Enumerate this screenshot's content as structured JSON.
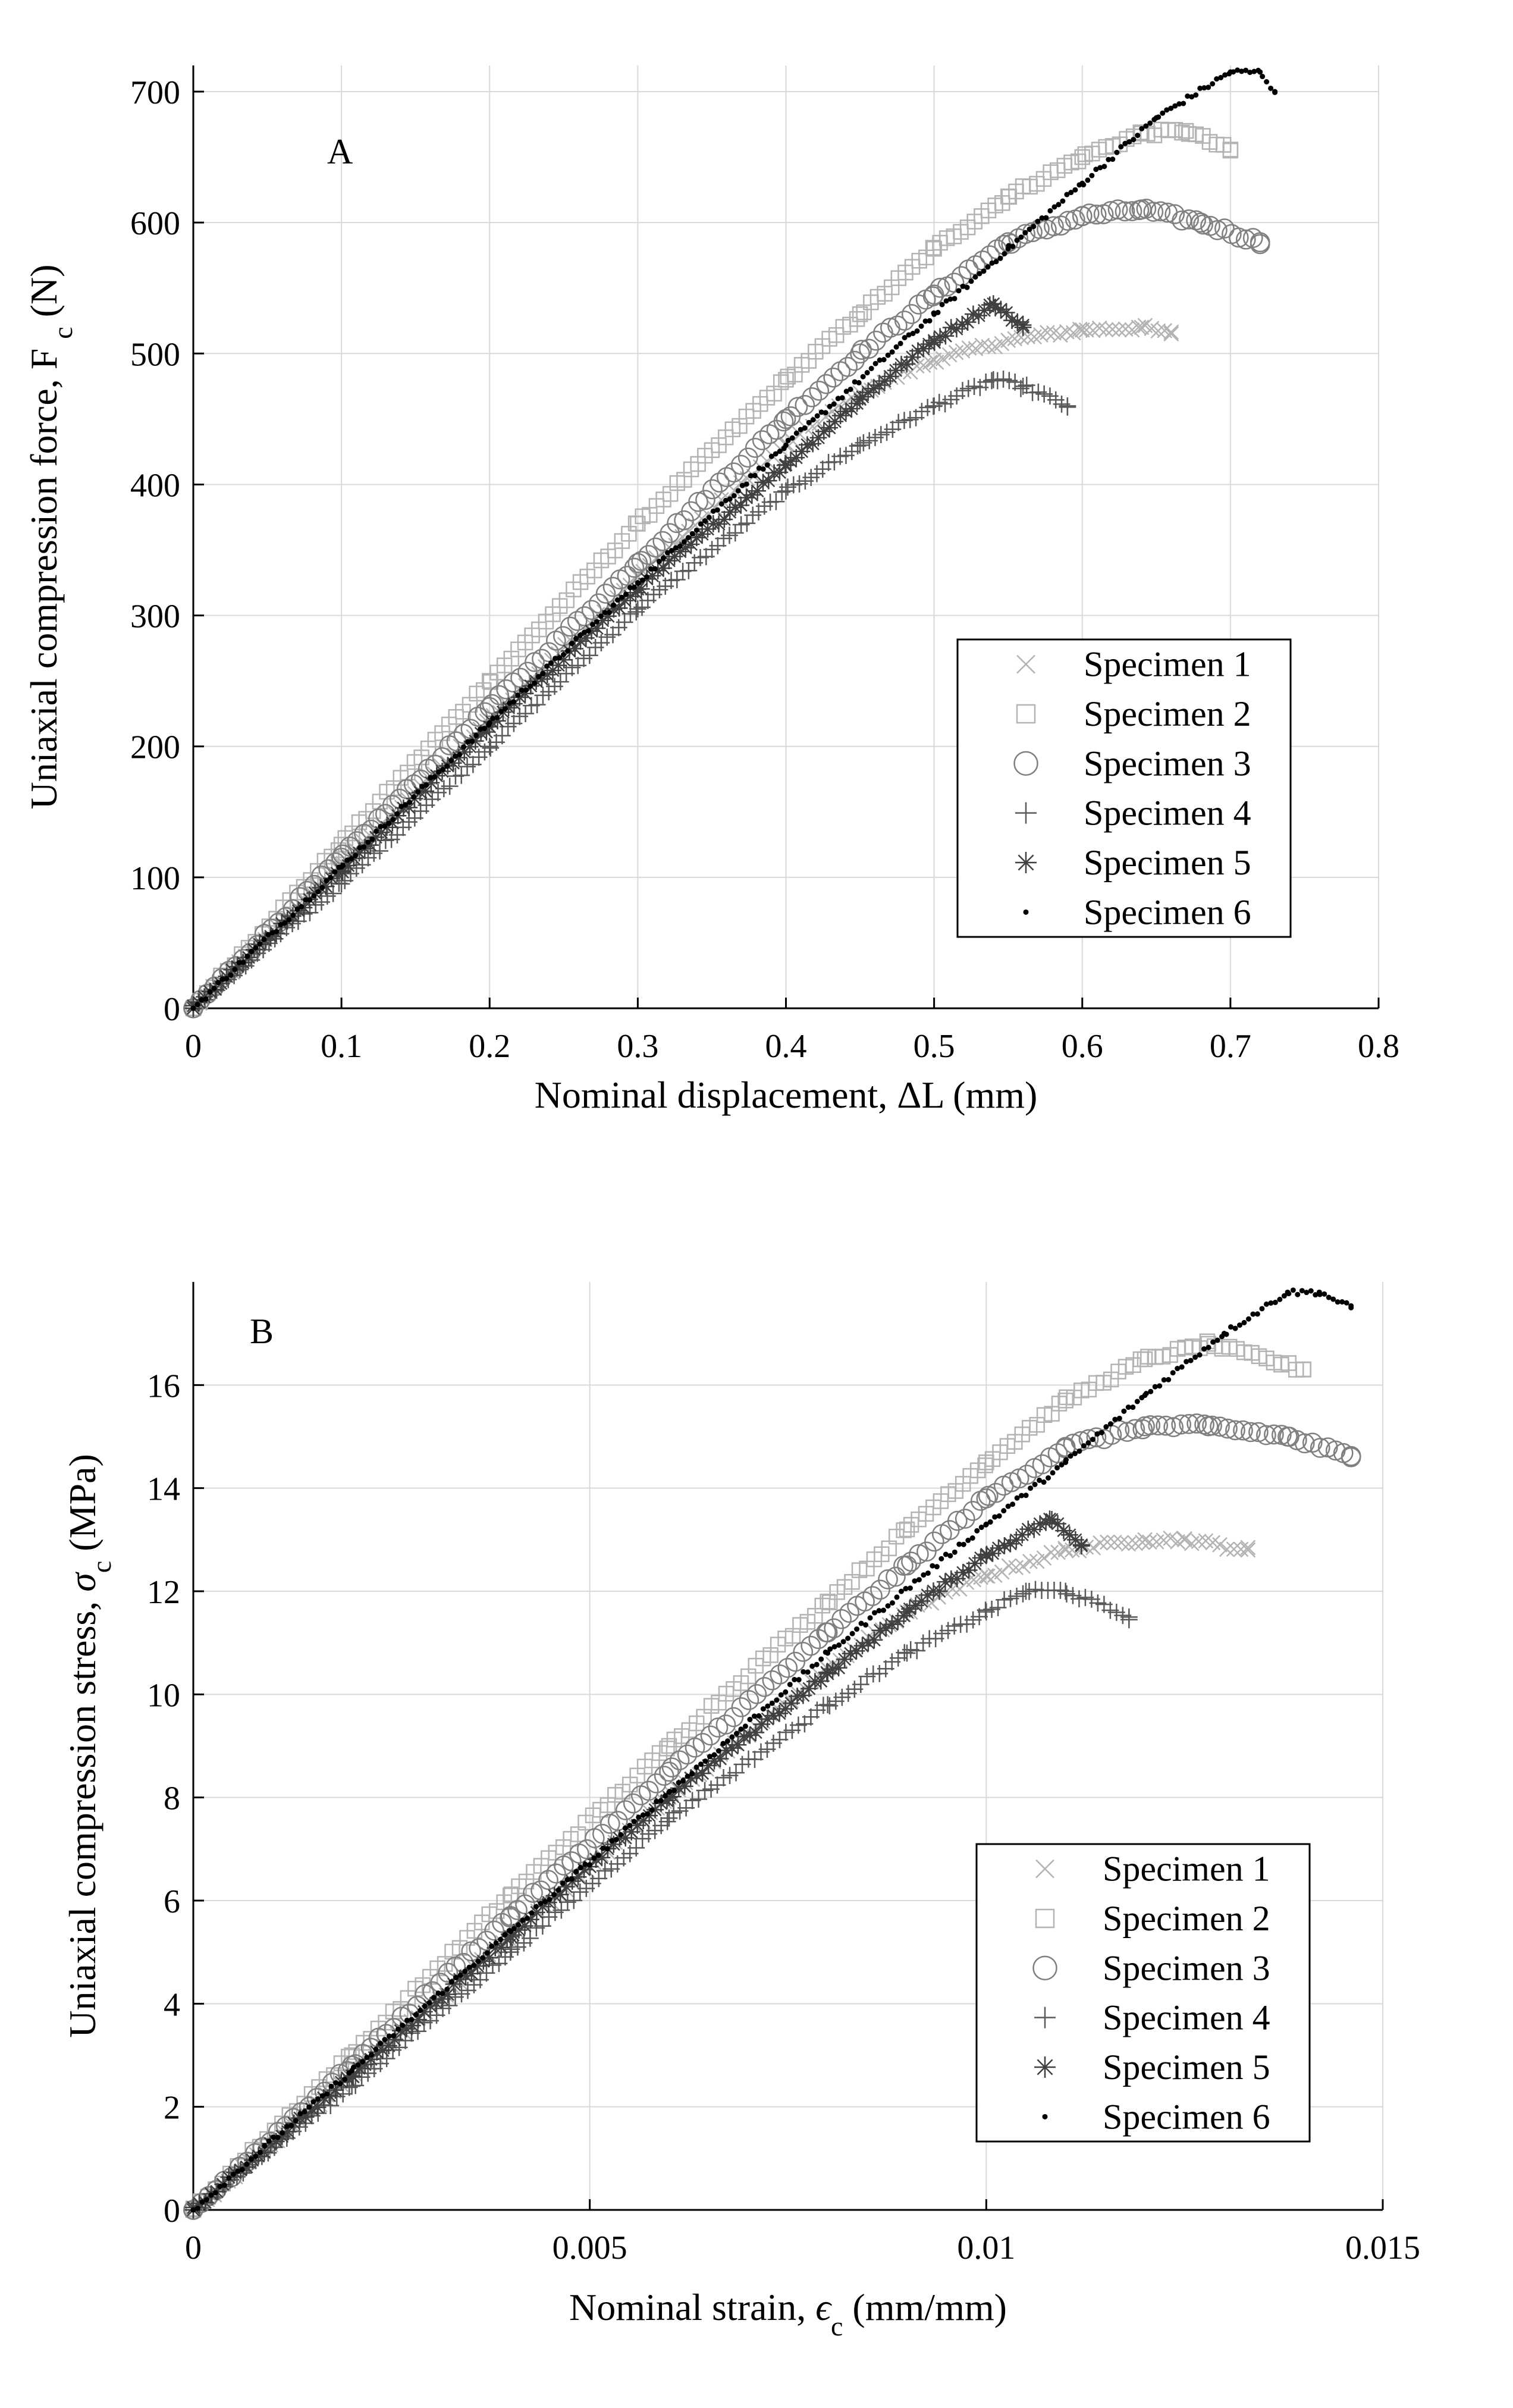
{
  "chart_data": [
    {
      "type": "scatter",
      "panel_label": "A",
      "xlabel": "Nominal displacement,  ΔL (mm)",
      "ylabel": "Uniaxial compression force, F",
      "ylabel_subscript": "c",
      "ylabel_suffix": " (N)",
      "xlim": [
        0,
        0.8
      ],
      "ylim": [
        0,
        720
      ],
      "xticks": [
        0,
        0.1,
        0.2,
        0.3,
        0.4,
        0.5,
        0.6,
        0.7,
        0.8
      ],
      "xtick_labels": [
        "0",
        "0.1",
        "0.2",
        "0.3",
        "0.4",
        "0.5",
        "0.6",
        "0.7",
        "0.8"
      ],
      "yticks": [
        0,
        100,
        200,
        300,
        400,
        500,
        600,
        700
      ],
      "ytick_labels": [
        "0",
        "100",
        "200",
        "300",
        "400",
        "500",
        "600",
        "700"
      ],
      "grid": true,
      "legend_position": "lower-right",
      "series": [
        {
          "name": "Specimen 1",
          "marker": "x",
          "color": "#b3b3b3",
          "points": [
            [
              0,
              0
            ],
            [
              0.1,
              110
            ],
            [
              0.2,
              220
            ],
            [
              0.3,
              330
            ],
            [
              0.4,
              430
            ],
            [
              0.45,
              470
            ],
            [
              0.5,
              495
            ],
            [
              0.55,
              510
            ],
            [
              0.6,
              518
            ],
            [
              0.64,
              520
            ],
            [
              0.66,
              515
            ]
          ]
        },
        {
          "name": "Specimen 2",
          "marker": "square",
          "color": "#b3b3b3",
          "points": [
            [
              0,
              0
            ],
            [
              0.1,
              125
            ],
            [
              0.2,
              250
            ],
            [
              0.3,
              370
            ],
            [
              0.4,
              480
            ],
            [
              0.45,
              530
            ],
            [
              0.5,
              580
            ],
            [
              0.55,
              620
            ],
            [
              0.6,
              650
            ],
            [
              0.64,
              668
            ],
            [
              0.67,
              670
            ],
            [
              0.7,
              655
            ]
          ]
        },
        {
          "name": "Specimen 3",
          "marker": "circle",
          "color": "#7f7f7f",
          "points": [
            [
              0,
              0
            ],
            [
              0.1,
              115
            ],
            [
              0.2,
              230
            ],
            [
              0.3,
              340
            ],
            [
              0.4,
              450
            ],
            [
              0.45,
              500
            ],
            [
              0.5,
              545
            ],
            [
              0.55,
              585
            ],
            [
              0.6,
              605
            ],
            [
              0.64,
              610
            ],
            [
              0.68,
              600
            ],
            [
              0.72,
              585
            ]
          ]
        },
        {
          "name": "Specimen 4",
          "marker": "plus",
          "color": "#595959",
          "points": [
            [
              0,
              0
            ],
            [
              0.1,
              95
            ],
            [
              0.2,
              200
            ],
            [
              0.3,
              305
            ],
            [
              0.4,
              395
            ],
            [
              0.45,
              430
            ],
            [
              0.5,
              460
            ],
            [
              0.54,
              480
            ],
            [
              0.56,
              475
            ],
            [
              0.59,
              460
            ]
          ]
        },
        {
          "name": "Specimen 5",
          "marker": "asterisk",
          "color": "#404040",
          "points": [
            [
              0,
              0
            ],
            [
              0.1,
              105
            ],
            [
              0.2,
              215
            ],
            [
              0.3,
              320
            ],
            [
              0.4,
              415
            ],
            [
              0.45,
              465
            ],
            [
              0.5,
              510
            ],
            [
              0.54,
              538
            ],
            [
              0.56,
              520
            ]
          ]
        },
        {
          "name": "Specimen 6",
          "marker": "dot",
          "color": "#000000",
          "points": [
            [
              0,
              0
            ],
            [
              0.1,
              108
            ],
            [
              0.2,
              218
            ],
            [
              0.3,
              325
            ],
            [
              0.4,
              430
            ],
            [
              0.5,
              530
            ],
            [
              0.55,
              580
            ],
            [
              0.6,
              630
            ],
            [
              0.65,
              680
            ],
            [
              0.7,
              715
            ],
            [
              0.72,
              715
            ],
            [
              0.73,
              700
            ]
          ]
        }
      ]
    },
    {
      "type": "scatter",
      "panel_label": "B",
      "xlabel": "Nominal strain,",
      "xlabel_symbol": "ϵ",
      "xlabel_subscript": "c",
      "xlabel_suffix": " (mm/mm)",
      "ylabel": "Uniaxial compression stress,",
      "ylabel_symbol": "σ",
      "ylabel_subscript": "c",
      "ylabel_suffix": " (MPa)",
      "xlim": [
        0,
        0.015
      ],
      "ylim": [
        0,
        18
      ],
      "xticks": [
        0,
        0.005,
        0.01,
        0.015
      ],
      "xtick_labels": [
        "0",
        "0.005",
        "0.01",
        "0.015"
      ],
      "yticks": [
        0,
        2,
        4,
        6,
        8,
        10,
        12,
        14,
        16
      ],
      "ytick_labels": [
        "0",
        "2",
        "4",
        "6",
        "8",
        "10",
        "12",
        "14",
        "16"
      ],
      "grid": true,
      "legend_position": "lower-right",
      "series": [
        {
          "name": "Specimen 1",
          "marker": "x",
          "color": "#b3b3b3",
          "points": [
            [
              0,
              0
            ],
            [
              0.002,
              2.6
            ],
            [
              0.004,
              5.3
            ],
            [
              0.006,
              8.0
            ],
            [
              0.008,
              10.5
            ],
            [
              0.009,
              11.6
            ],
            [
              0.01,
              12.3
            ],
            [
              0.011,
              12.8
            ],
            [
              0.012,
              13.0
            ],
            [
              0.0125,
              13.0
            ],
            [
              0.0133,
              12.8
            ]
          ]
        },
        {
          "name": "Specimen 2",
          "marker": "square",
          "color": "#b3b3b3",
          "points": [
            [
              0,
              0
            ],
            [
              0.002,
              3.0
            ],
            [
              0.004,
              6.1
            ],
            [
              0.006,
              9.0
            ],
            [
              0.008,
              11.8
            ],
            [
              0.009,
              13.2
            ],
            [
              0.01,
              14.5
            ],
            [
              0.011,
              15.7
            ],
            [
              0.012,
              16.5
            ],
            [
              0.0128,
              16.8
            ],
            [
              0.014,
              16.3
            ]
          ]
        },
        {
          "name": "Specimen 3",
          "marker": "circle",
          "color": "#7f7f7f",
          "points": [
            [
              0,
              0
            ],
            [
              0.002,
              2.8
            ],
            [
              0.004,
              5.7
            ],
            [
              0.006,
              8.5
            ],
            [
              0.008,
              11.2
            ],
            [
              0.009,
              12.5
            ],
            [
              0.01,
              13.8
            ],
            [
              0.011,
              14.8
            ],
            [
              0.012,
              15.2
            ],
            [
              0.0128,
              15.2
            ],
            [
              0.0138,
              15.0
            ],
            [
              0.0146,
              14.6
            ]
          ]
        },
        {
          "name": "Specimen 4",
          "marker": "plus",
          "color": "#595959",
          "points": [
            [
              0,
              0
            ],
            [
              0.002,
              2.4
            ],
            [
              0.004,
              5.0
            ],
            [
              0.006,
              7.6
            ],
            [
              0.008,
              9.8
            ],
            [
              0.009,
              10.8
            ],
            [
              0.01,
              11.6
            ],
            [
              0.0105,
              12.0
            ],
            [
              0.011,
              12.0
            ],
            [
              0.0118,
              11.5
            ]
          ]
        },
        {
          "name": "Specimen 5",
          "marker": "asterisk",
          "color": "#404040",
          "points": [
            [
              0,
              0
            ],
            [
              0.002,
              2.6
            ],
            [
              0.004,
              5.3
            ],
            [
              0.006,
              8.0
            ],
            [
              0.008,
              10.4
            ],
            [
              0.009,
              11.6
            ],
            [
              0.01,
              12.7
            ],
            [
              0.0108,
              13.4
            ],
            [
              0.0112,
              12.9
            ]
          ]
        },
        {
          "name": "Specimen 6",
          "marker": "dot",
          "color": "#000000",
          "points": [
            [
              0,
              0
            ],
            [
              0.002,
              2.7
            ],
            [
              0.004,
              5.4
            ],
            [
              0.006,
              8.1
            ],
            [
              0.008,
              10.8
            ],
            [
              0.01,
              13.3
            ],
            [
              0.011,
              14.5
            ],
            [
              0.012,
              15.8
            ],
            [
              0.013,
              17.0
            ],
            [
              0.0138,
              17.8
            ],
            [
              0.0142,
              17.8
            ],
            [
              0.0146,
              17.5
            ]
          ]
        }
      ]
    }
  ]
}
